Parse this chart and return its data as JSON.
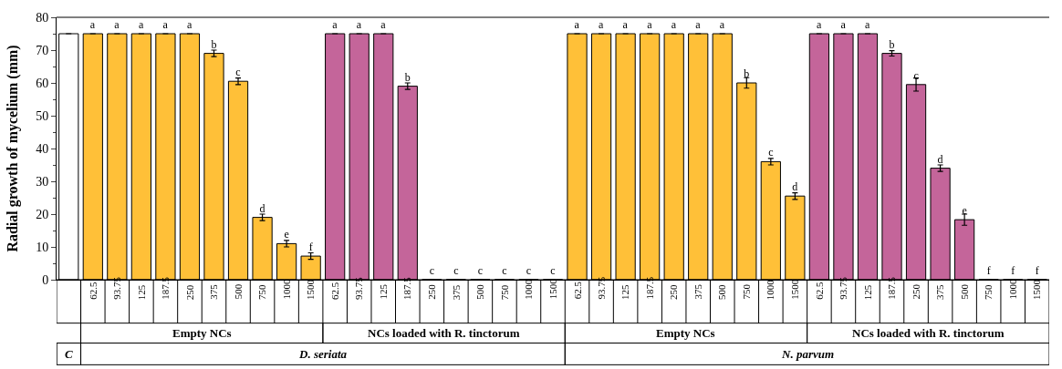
{
  "chart_data": {
    "type": "bar",
    "ylabel": "Radial growth of mycelium (mm)",
    "categories": [
      null,
      "62.5",
      "93.75",
      "125",
      "187.5",
      "250",
      "375",
      "500",
      "750",
      "1000",
      "1500",
      "62.5",
      "93.75",
      "125",
      "187.5",
      "250",
      "375",
      "500",
      "750",
      "1000",
      "1500",
      "62.5",
      "93.75",
      "125",
      "187.5",
      "250",
      "375",
      "500",
      "750",
      "1000",
      "1500",
      "62.5",
      "93.75",
      "125",
      "187.5",
      "250",
      "375",
      "500",
      "750",
      "1000",
      "1500"
    ],
    "values": [
      75,
      75,
      75,
      75,
      75,
      75,
      69,
      60.5,
      19,
      11,
      7.2,
      75,
      75,
      75,
      59,
      0,
      0,
      0,
      0,
      0,
      0,
      75,
      75,
      75,
      75,
      75,
      75,
      75,
      60,
      36,
      25.5,
      75,
      75,
      75,
      69,
      59.5,
      34,
      18.3,
      0,
      0,
      0
    ],
    "errors": [
      null,
      null,
      null,
      null,
      null,
      null,
      1,
      1,
      1,
      1,
      1,
      null,
      null,
      null,
      1,
      null,
      null,
      null,
      null,
      null,
      null,
      null,
      null,
      null,
      null,
      null,
      null,
      null,
      1.6,
      1,
      1,
      null,
      null,
      null,
      0.8,
      2,
      1,
      1.7,
      null,
      null,
      null
    ],
    "value_labels": [
      null,
      "a",
      "a",
      "a",
      "a",
      "a",
      "b",
      "c",
      "d",
      "e",
      "f",
      "a",
      "a",
      "a",
      "b",
      "c",
      "c",
      "c",
      "c",
      "c",
      "c",
      "a",
      "a",
      "a",
      "a",
      "a",
      "a",
      "a",
      "b",
      "c",
      "d",
      "a",
      "a",
      "a",
      "b",
      "c",
      "d",
      "e",
      "f",
      "f",
      "f"
    ],
    "colors": [
      "#ffffff",
      "#ffc038",
      "#ffc038",
      "#ffc038",
      "#ffc038",
      "#ffc038",
      "#ffc038",
      "#ffc038",
      "#ffc038",
      "#ffc038",
      "#ffc038",
      "#c4659a",
      "#c4659a",
      "#c4659a",
      "#c4659a",
      "#c4659a",
      "#c4659a",
      "#c4659a",
      "#c4659a",
      "#c4659a",
      "#c4659a",
      "#ffc038",
      "#ffc038",
      "#ffc038",
      "#ffc038",
      "#ffc038",
      "#ffc038",
      "#ffc038",
      "#ffc038",
      "#ffc038",
      "#ffc038",
      "#c4659a",
      "#c4659a",
      "#c4659a",
      "#c4659a",
      "#c4659a",
      "#c4659a",
      "#c4659a",
      "#c4659a",
      "#c4659a",
      "#c4659a"
    ],
    "ylim": [
      0,
      80
    ],
    "yticks": [
      0,
      10,
      20,
      30,
      40,
      50,
      60,
      70,
      80
    ],
    "annotations": [
      "Empty NCs",
      "NCs loaded with R. tinctorum",
      "Empty NCs",
      "NCs loaded with R. tinctorum",
      "C",
      "D. seriata",
      "N. parvum"
    ]
  }
}
